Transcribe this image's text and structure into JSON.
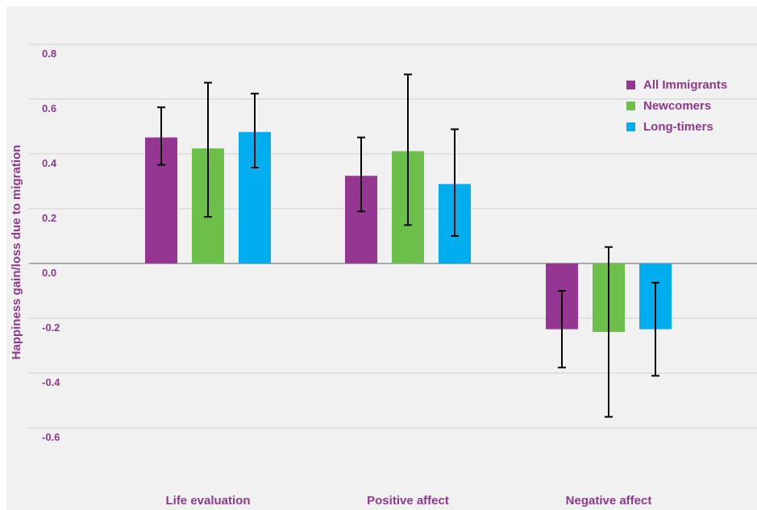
{
  "colors": {
    "text": "#8e3a8c",
    "grid": "#d0d0d0",
    "zero_line": "#a9a9a9",
    "error_bar": "#000000",
    "background": "#f1f1f1"
  },
  "chart_data": {
    "type": "bar",
    "title": "",
    "xlabel": "",
    "ylabel": "Happiness gain/loss due to migration",
    "ylim": [
      -0.7,
      0.82
    ],
    "yticks": [
      -0.6,
      -0.4,
      -0.2,
      0.0,
      0.2,
      0.4,
      0.6,
      0.8
    ],
    "ytick_labels": [
      "-0.6",
      "-0.4",
      "-0.2",
      "0.0",
      "0.2",
      "0.4",
      "0.6",
      "0.8"
    ],
    "grid": true,
    "legend_position": "top-right",
    "categories": [
      "Life evaluation",
      "Positive affect",
      "Negative affect"
    ],
    "series": [
      {
        "name": "All Immigrants",
        "color": "#963693",
        "values": [
          0.46,
          0.32,
          -0.24
        ],
        "error_low": [
          0.36,
          0.19,
          -0.38
        ],
        "error_high": [
          0.57,
          0.46,
          -0.1
        ]
      },
      {
        "name": "Newcomers",
        "color": "#6cc04a",
        "values": [
          0.42,
          0.41,
          -0.25
        ],
        "error_low": [
          0.17,
          0.14,
          -0.56
        ],
        "error_high": [
          0.66,
          0.69,
          0.06
        ]
      },
      {
        "name": "Long-timers",
        "color": "#00adee",
        "values": [
          0.48,
          0.29,
          -0.24
        ],
        "error_low": [
          0.35,
          0.1,
          -0.41
        ],
        "error_high": [
          0.62,
          0.49,
          -0.07
        ]
      }
    ]
  }
}
